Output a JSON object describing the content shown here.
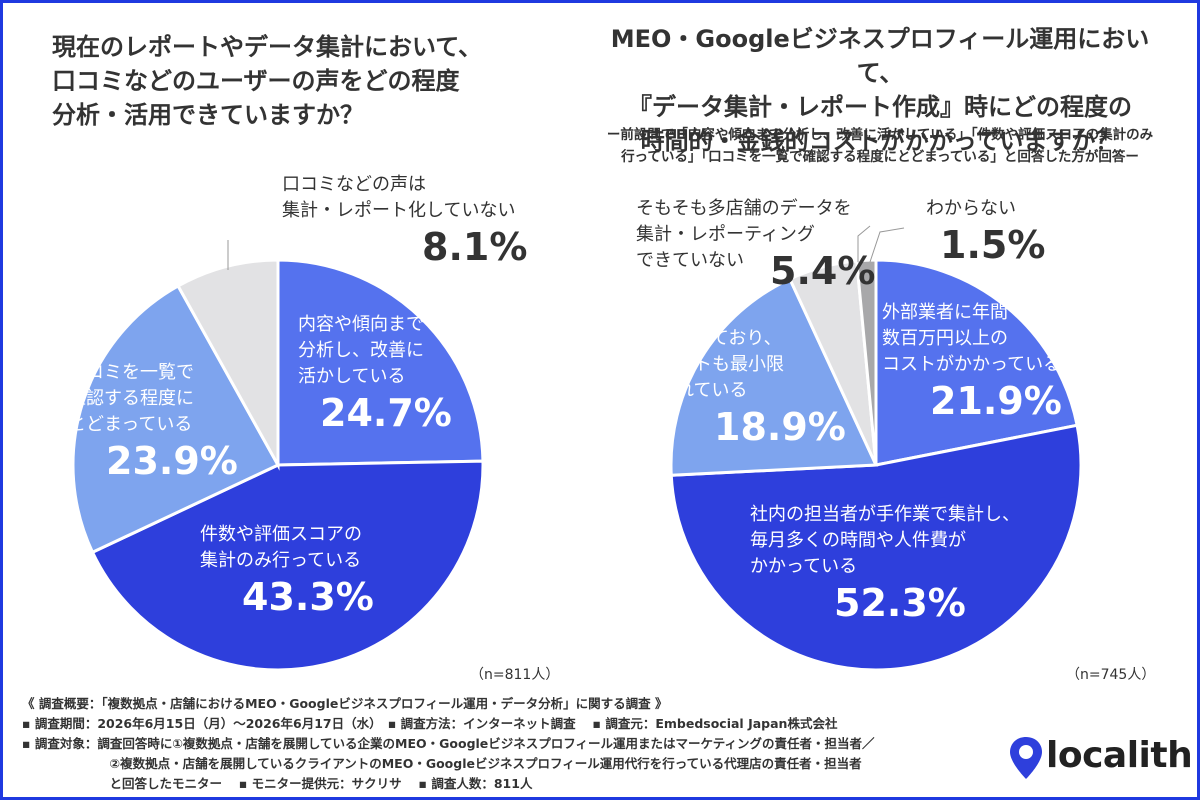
{
  "chart_data": [
    {
      "type": "pie",
      "title": "現在のレポートやデータ集計において、\n口コミなどのユーザーの声をどの程度\n分析・活用できていますか？",
      "slices": [
        {
          "label": "内容や傾向まで\n分析し、改善に\n活かしている",
          "value": 24.7,
          "pct_label": "24.7%",
          "color": "#5572ee"
        },
        {
          "label": "件数や評価スコアの\n集計のみ行っている",
          "value": 43.3,
          "pct_label": "43.3%",
          "color": "#2e3fdc"
        },
        {
          "label": "口コミを一覧で\n確認する程度に\nとどまっている",
          "value": 23.9,
          "pct_label": "23.9%",
          "color": "#7ea4ee"
        },
        {
          "label": "口コミなどの声は\n集計・レポート化していない",
          "value": 8.1,
          "pct_label": "8.1%",
          "color": "#e2e2e4"
        }
      ],
      "n_label": "（n=811人）"
    },
    {
      "type": "pie",
      "title": "MEO・Googleビジネスプロフィール運用において、\n『データ集計・レポート作成』時にどの程度の\n時間的・金銭的コストがかかっていますか？",
      "subtitle": "ー前設問で「内容や傾向まで分析し、改善に活かしている」「件数や評価スコアの集計のみ\n行っている」「口コミを一覧で確認する程度にとどまっている」と回答した方が回答ー",
      "slices": [
        {
          "label": "外部業者に年間\n数百万円以上の\nコストがかかっている",
          "value": 21.9,
          "pct_label": "21.9%",
          "color": "#5572ee"
        },
        {
          "label": "社内の担当者が手作業で集計し、\n毎月多くの時間や人件費が\nかかっている",
          "value": 52.3,
          "pct_label": "52.3%",
          "color": "#2e3fdc"
        },
        {
          "label": "システム化しており、\n時間もコストも最小限\nに抑えられている",
          "value": 18.9,
          "pct_label": "18.9%",
          "color": "#7ea4ee"
        },
        {
          "label": "そもそも多店舗のデータを\n集計・レポーティング\nできていない",
          "value": 5.4,
          "pct_label": "5.4%",
          "color": "#e2e2e4"
        },
        {
          "label": "わからない",
          "value": 1.5,
          "pct_label": "1.5%",
          "color": "#a8a8aa"
        }
      ],
      "n_label": "（n=745人）"
    }
  ],
  "footer": {
    "line1": "《 調査概要：「複数拠点・店舗におけるMEO・Googleビジネスプロフィール運用・データ分析」に関する調査 》",
    "line2": "▪ 調査期間：2026年6月15日（月）〜2026年6月17日（水）　▪ 調査方法：インターネット調査　 ▪ 調査元：Embedsocial Japan株式会社",
    "line3": "▪ 調査対象：調査回答時に①複数拠点・店舗を展開している企業のMEO・Googleビジネスプロフィール運用またはマーケティングの責任者・担当者／",
    "line4": "　　　　　　　②複数拠点・店舗を展開しているクライアントのMEO・Googleビジネスプロフィール運用代行を行っている代理店の責任者・担当者",
    "line5": "　　　　　　　と回答したモニター　 ▪ モニター提供元：サクリサ　 ▪ 調査人数：811人"
  },
  "logo": {
    "text": "localith",
    "icon": "location-pin-icon",
    "color": "#2e3fdc"
  }
}
